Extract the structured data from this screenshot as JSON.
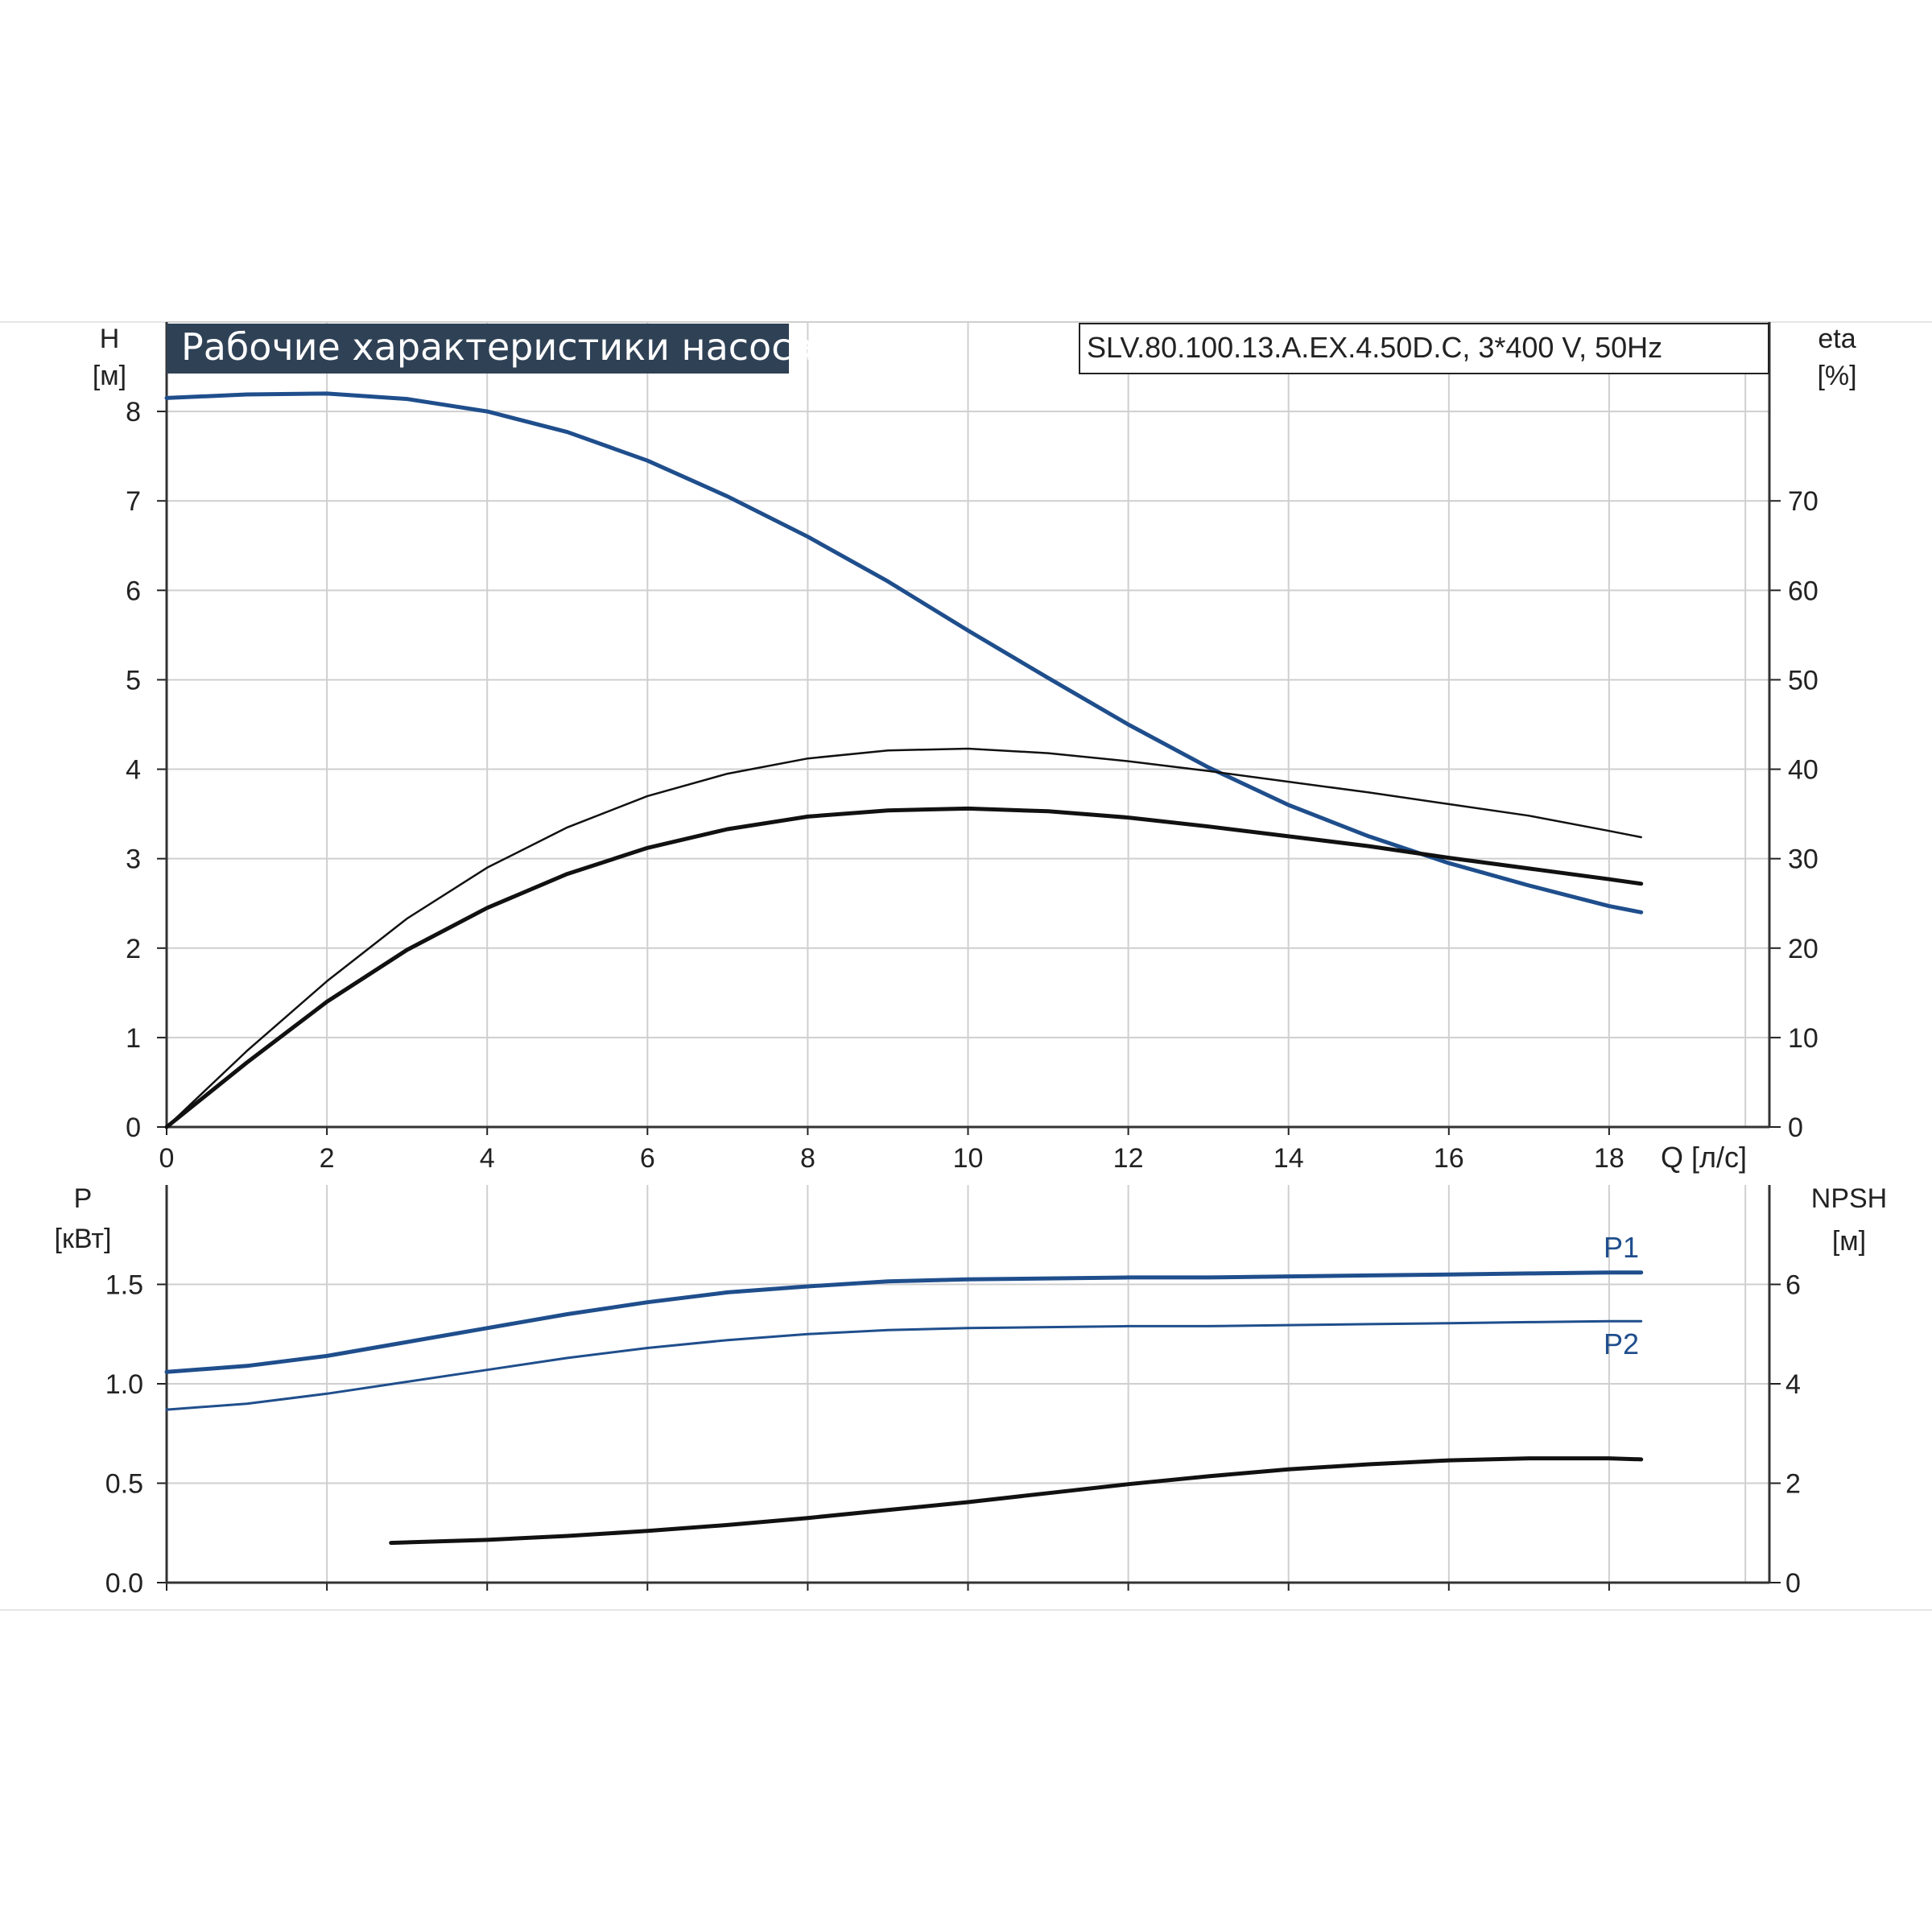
{
  "chart_data": [
    {
      "type": "line",
      "title": "Рабочие характеристики насоса",
      "subtitle": "SLV.80.100.13.A.EX.4.50D.C, 3*400 V, 50Hz",
      "xlabel": "Q [л/с]",
      "ylabel_name": "H",
      "ylabel_unit": "[м]",
      "y2label_name": "eta",
      "y2label_unit": "[%]",
      "xlim": [
        0,
        20
      ],
      "xticks": [
        0,
        2,
        4,
        6,
        8,
        10,
        12,
        14,
        16,
        18
      ],
      "ylim": [
        0,
        9
      ],
      "yticks": [
        0,
        1,
        2,
        3,
        4,
        5,
        6,
        7,
        8
      ],
      "y2lim": [
        0,
        90
      ],
      "y2ticks": [
        0,
        10,
        20,
        30,
        40,
        50,
        60,
        70
      ],
      "grid": true,
      "series": [
        {
          "axis": "left",
          "color": "#1f4e8c",
          "stroke": 5,
          "x": [
            0,
            1,
            2,
            3,
            4,
            5,
            6,
            7,
            8,
            9,
            10,
            11,
            12,
            13,
            14,
            15,
            16,
            17,
            18,
            18.4
          ],
          "y": [
            8.15,
            8.19,
            8.2,
            8.14,
            8.0,
            7.77,
            7.45,
            7.05,
            6.6,
            6.1,
            5.55,
            5.02,
            4.5,
            4.02,
            3.6,
            3.25,
            2.95,
            2.7,
            2.47,
            2.4
          ]
        },
        {
          "axis": "right",
          "color": "#111111",
          "stroke": 2.5,
          "x": [
            0,
            1,
            2,
            3,
            4,
            5,
            6,
            7,
            8,
            9,
            10,
            11,
            12,
            13,
            14,
            15,
            16,
            17,
            18,
            18.4
          ],
          "y": [
            0,
            8.5,
            16.3,
            23.3,
            29.0,
            33.5,
            37.0,
            39.5,
            41.2,
            42.1,
            42.3,
            41.8,
            40.9,
            39.8,
            38.6,
            37.4,
            36.1,
            34.8,
            33.1,
            32.4
          ]
        },
        {
          "axis": "right",
          "color": "#111111",
          "stroke": 5,
          "x": [
            0,
            1,
            2,
            3,
            4,
            5,
            6,
            7,
            8,
            9,
            10,
            11,
            12,
            13,
            14,
            15,
            16,
            17,
            18,
            18.4
          ],
          "y": [
            0,
            7.2,
            14.0,
            19.8,
            24.5,
            28.3,
            31.2,
            33.3,
            34.7,
            35.4,
            35.6,
            35.3,
            34.6,
            33.6,
            32.5,
            31.4,
            30.1,
            28.9,
            27.7,
            27.2
          ]
        }
      ]
    },
    {
      "type": "line",
      "xlabel": "",
      "ylabel_name": "P",
      "ylabel_unit": "[кВт]",
      "y2label_name": "NPSH",
      "y2label_unit": "[м]",
      "xlim": [
        0,
        20
      ],
      "ylim": [
        0,
        2.0
      ],
      "yticks": [
        0.0,
        0.5,
        1.0,
        1.5
      ],
      "ytick_labels": [
        "0.0",
        "0.5",
        "1.0",
        "1.5"
      ],
      "y2lim": [
        0,
        8
      ],
      "y2ticks": [
        0,
        2,
        4,
        6
      ],
      "grid": true,
      "series": [
        {
          "name": "P1",
          "axis": "left",
          "color": "#1f4e8c",
          "stroke": 5,
          "x": [
            0,
            1,
            2,
            3,
            4,
            5,
            6,
            7,
            8,
            9,
            10,
            11,
            12,
            13,
            14,
            15,
            16,
            17,
            18,
            18.4
          ],
          "y": [
            1.06,
            1.09,
            1.14,
            1.21,
            1.28,
            1.35,
            1.41,
            1.46,
            1.49,
            1.515,
            1.525,
            1.53,
            1.535,
            1.535,
            1.54,
            1.545,
            1.55,
            1.555,
            1.56,
            1.56
          ]
        },
        {
          "name": "P2",
          "axis": "left",
          "color": "#1f4e8c",
          "stroke": 3,
          "x": [
            0,
            1,
            2,
            3,
            4,
            5,
            6,
            7,
            8,
            9,
            10,
            11,
            12,
            13,
            14,
            15,
            16,
            17,
            18,
            18.4
          ],
          "y": [
            0.87,
            0.9,
            0.95,
            1.01,
            1.07,
            1.13,
            1.18,
            1.22,
            1.25,
            1.27,
            1.28,
            1.285,
            1.29,
            1.29,
            1.295,
            1.3,
            1.305,
            1.31,
            1.315,
            1.315
          ]
        },
        {
          "axis": "right",
          "color": "#111111",
          "stroke": 5,
          "x": [
            2.8,
            4,
            5,
            6,
            7,
            8,
            9,
            10,
            11,
            12,
            13,
            14,
            15,
            16,
            17,
            18,
            18.4
          ],
          "y": [
            0.8,
            0.86,
            0.94,
            1.04,
            1.16,
            1.3,
            1.46,
            1.62,
            1.8,
            1.98,
            2.14,
            2.28,
            2.38,
            2.46,
            2.5,
            2.5,
            2.48
          ]
        }
      ]
    }
  ]
}
